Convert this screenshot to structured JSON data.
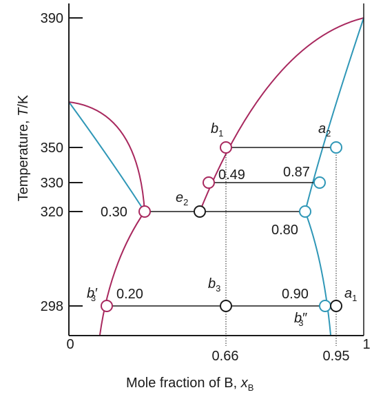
{
  "colors": {
    "liquidus": "#a8285e",
    "solidus": "#2f97b7",
    "tie": "#1a1a1a",
    "axis": "#1a1a1a"
  },
  "axes": {
    "y_ticks": [
      "390",
      "350",
      "330",
      "320",
      "298"
    ],
    "x_ticks": [
      "0",
      "0.66",
      "0.95",
      "1"
    ],
    "y_label_main": "Temperature, ",
    "y_label_italic": "T",
    "y_label_unit": "/K",
    "x_label_main": "Mole fraction of B, ",
    "x_label_var": "x",
    "x_label_sub": "B"
  },
  "labels": {
    "b1_main": "b",
    "b1_sub": "1",
    "a2_main": "a",
    "a2_sub": "2",
    "e2_main": "e",
    "e2_sub": "2",
    "b3_main": "b",
    "b3_sub": "3",
    "a1_main": "a",
    "a1_sub": "1",
    "b3p_main": "b",
    "b3p_sub": "3",
    "b3p_prime": "′",
    "b3pp_main": "b",
    "b3pp_sub": "3",
    "b3pp_prime": "″",
    "v049": "0.49",
    "v087": "0.87",
    "v030": "0.30",
    "v080": "0.80",
    "v020": "0.20",
    "v090": "0.90"
  }
}
